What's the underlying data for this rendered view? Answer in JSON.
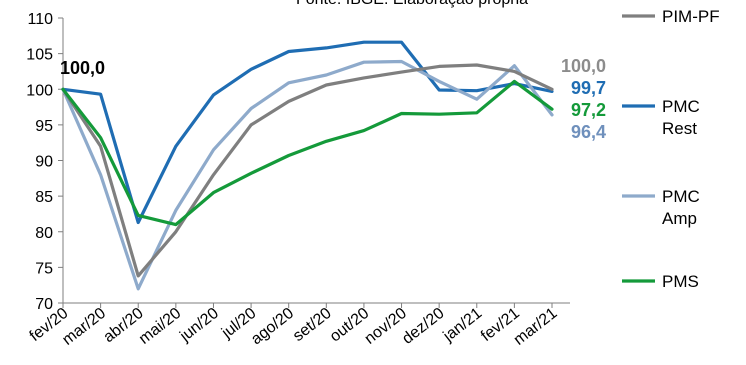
{
  "chart_data": {
    "type": "line",
    "source_note": "Fonte: IBGE. Elaboração própria",
    "categories": [
      "fev/20",
      "mar/20",
      "abr/20",
      "mai/20",
      "jun/20",
      "jul/20",
      "ago/20",
      "set/20",
      "out/20",
      "nov/20",
      "dez/20",
      "jan/21",
      "fev/21",
      "mar/21"
    ],
    "ylim": [
      70,
      110
    ],
    "yticks": [
      70,
      75,
      80,
      85,
      90,
      95,
      100,
      105,
      110
    ],
    "grid": false,
    "legend_position": "right",
    "series": [
      {
        "name": "PIM-PF",
        "color": "#7f7f7f",
        "values": [
          100.0,
          92.0,
          73.8,
          80.0,
          88.0,
          95.0,
          98.3,
          100.6,
          101.6,
          102.4,
          103.2,
          103.4,
          102.5,
          100.0
        ]
      },
      {
        "name": "PMC Rest",
        "color": "#1f6db3",
        "values": [
          100.0,
          99.3,
          81.3,
          92.0,
          99.2,
          102.8,
          105.3,
          105.8,
          106.6,
          106.6,
          99.9,
          99.8,
          100.8,
          99.7
        ]
      },
      {
        "name": "PMC Amp",
        "color": "#8eaacb",
        "values": [
          100.0,
          88.0,
          72.0,
          83.0,
          91.5,
          97.3,
          100.9,
          102.0,
          103.8,
          103.9,
          101.1,
          98.6,
          103.3,
          96.4
        ]
      },
      {
        "name": "PMS",
        "color": "#149a3a",
        "values": [
          100.0,
          93.2,
          82.3,
          81.0,
          85.5,
          88.2,
          90.7,
          92.7,
          94.2,
          96.6,
          96.5,
          96.7,
          101.1,
          97.2
        ]
      }
    ],
    "annotations": [
      {
        "text": "100,0",
        "color": "#000000",
        "anchor": "start"
      },
      {
        "text": "100,0",
        "color": "#8c8c8c",
        "anchor": "end"
      },
      {
        "text": "99,7",
        "color": "#1f6db3",
        "anchor": "end"
      },
      {
        "text": "97,2",
        "color": "#149a3a",
        "anchor": "end"
      },
      {
        "text": "96,4",
        "color": "#6f90bc",
        "anchor": "end"
      }
    ]
  }
}
